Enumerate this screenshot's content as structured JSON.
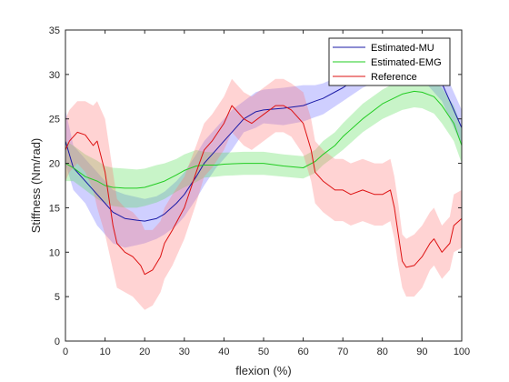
{
  "chart_data": {
    "type": "line",
    "title": "",
    "xlabel": "flexion (%)",
    "ylabel": "Stiffness (Nm/rad)",
    "xlim": [
      0,
      100
    ],
    "ylim": [
      0,
      35
    ],
    "xticks": [
      0,
      10,
      20,
      30,
      40,
      50,
      60,
      70,
      80,
      90,
      100
    ],
    "yticks": [
      0,
      5,
      10,
      15,
      20,
      25,
      30,
      35
    ],
    "grid": false,
    "legend_position": "top-right",
    "series": [
      {
        "name": "Estimated-MU",
        "color": "#1a1aa6",
        "band_color": "#6b6bff",
        "x": [
          0,
          2,
          5,
          8,
          10,
          12,
          15,
          18,
          20,
          23,
          25,
          28,
          30,
          33,
          35,
          38,
          40,
          42,
          45,
          48,
          50,
          55,
          60,
          63,
          65,
          70,
          75,
          80,
          85,
          90,
          95,
          100
        ],
        "y": [
          22.5,
          19.5,
          18,
          16.5,
          15.5,
          14.5,
          13.8,
          13.6,
          13.5,
          13.8,
          14.3,
          15.5,
          16.5,
          18.5,
          20,
          21.5,
          22.5,
          23.5,
          25,
          25.8,
          26,
          26.2,
          26.5,
          27,
          27.3,
          28.5,
          30,
          31,
          31.5,
          31,
          29,
          24
        ],
        "lower": [
          20,
          17,
          15.5,
          13,
          12,
          11,
          10.5,
          10.8,
          11,
          11.5,
          12,
          13,
          14,
          16,
          17.5,
          19.5,
          20.5,
          21.5,
          23.5,
          24,
          24.5,
          24.3,
          24.7,
          25.2,
          25.5,
          27,
          28.5,
          29.5,
          30,
          29.5,
          27,
          22
        ],
        "upper": [
          26,
          22,
          20.5,
          19,
          18,
          17,
          16.5,
          16.2,
          16,
          16.3,
          16.8,
          18,
          19,
          21,
          22.5,
          24,
          25,
          26,
          27,
          28,
          28.3,
          28.5,
          28.8,
          28.8,
          29,
          30,
          31.5,
          32.5,
          33,
          32.5,
          31,
          26
        ]
      },
      {
        "name": "Estimated-EMG",
        "color": "#22cc22",
        "band_color": "#55dd55",
        "x": [
          0,
          2,
          5,
          8,
          10,
          12,
          15,
          18,
          20,
          23,
          25,
          28,
          30,
          33,
          35,
          38,
          40,
          45,
          50,
          55,
          60,
          63,
          65,
          68,
          70,
          75,
          80,
          85,
          88,
          90,
          93,
          95,
          98,
          100
        ],
        "y": [
          20,
          19.5,
          18.5,
          18,
          17.5,
          17.3,
          17.2,
          17.2,
          17.3,
          17.7,
          18,
          18.7,
          19.2,
          19.7,
          19.8,
          19.8,
          19.9,
          20,
          20,
          19.7,
          19.5,
          20.2,
          21,
          22,
          23,
          25,
          26.7,
          27.8,
          28.1,
          28,
          27.5,
          26.5,
          24.5,
          22
        ],
        "lower": [
          18,
          18,
          17,
          16,
          15.5,
          15.2,
          15,
          15,
          15.2,
          15.6,
          16,
          16.8,
          17.3,
          17.9,
          18.4,
          18.5,
          18.6,
          18.7,
          18.7,
          18.5,
          18.3,
          18.9,
          19.8,
          20.8,
          21.5,
          23.5,
          25,
          26,
          26.3,
          26.2,
          25.6,
          24.5,
          22.5,
          20
        ],
        "upper": [
          22.5,
          22,
          21,
          20.3,
          19.7,
          19.5,
          19.4,
          19.3,
          19.4,
          19.8,
          20,
          20.5,
          21,
          21.5,
          21.3,
          21.2,
          21.2,
          21.3,
          21.3,
          21,
          20.8,
          21.5,
          22.5,
          23.5,
          24.5,
          26.7,
          28.3,
          29.5,
          29.8,
          29.7,
          29.2,
          28.5,
          26.5,
          24
        ]
      },
      {
        "name": "Reference",
        "color": "#dd1111",
        "band_color": "#ff7777",
        "x": [
          0,
          1,
          2,
          3,
          5,
          7,
          8,
          10,
          12,
          13,
          15,
          17,
          19,
          20,
          22,
          24,
          25,
          27,
          30,
          33,
          35,
          37,
          40,
          42,
          43,
          45,
          47,
          50,
          53,
          55,
          57,
          60,
          62,
          63,
          65,
          68,
          70,
          72,
          75,
          78,
          80,
          82,
          83,
          84,
          85,
          86,
          88,
          90,
          92,
          93,
          95,
          97,
          98,
          100
        ],
        "y": [
          21.5,
          22.5,
          23,
          23.5,
          23.2,
          22,
          22.5,
          19,
          13,
          11,
          10,
          9.5,
          8.5,
          7.5,
          8,
          9.5,
          11,
          12.5,
          15,
          19,
          21.5,
          22.5,
          24.5,
          26.5,
          26,
          25,
          24.5,
          25.5,
          26.5,
          26.5,
          26,
          24.5,
          21.5,
          19,
          18,
          17,
          17,
          16.5,
          17,
          16.5,
          16.5,
          17,
          15,
          12,
          9,
          8.3,
          8.5,
          9.5,
          11,
          11.5,
          10,
          11,
          13,
          13.8
        ],
        "lower": [
          18,
          19,
          19.5,
          20,
          19,
          17,
          15,
          12,
          8,
          6,
          5.5,
          5,
          4,
          3.5,
          4,
          5.5,
          7,
          8.5,
          11.5,
          15.5,
          18.5,
          19.5,
          21.5,
          23.5,
          23,
          22,
          21.5,
          22.5,
          23.5,
          23.5,
          23,
          21,
          18,
          15.5,
          14.5,
          13.5,
          13.5,
          13,
          13.5,
          13,
          13,
          13.5,
          11.5,
          8.5,
          6,
          5,
          5,
          6,
          8,
          8.5,
          7,
          8,
          10,
          10.5
        ],
        "upper": [
          25,
          26,
          26.5,
          27,
          27,
          26.5,
          27,
          25,
          19,
          16,
          15,
          14.5,
          13.5,
          12.5,
          12.5,
          13.5,
          15,
          16.5,
          18.5,
          22,
          24.5,
          25.5,
          27.5,
          29.5,
          29,
          28,
          27.5,
          28.5,
          29.5,
          29.5,
          29,
          28,
          25,
          22.5,
          21.5,
          20.5,
          20.5,
          20,
          20.5,
          20,
          20,
          20.5,
          18.5,
          15.5,
          12,
          11.5,
          12,
          13,
          14.5,
          15,
          13,
          14,
          16.5,
          17
        ]
      }
    ]
  }
}
